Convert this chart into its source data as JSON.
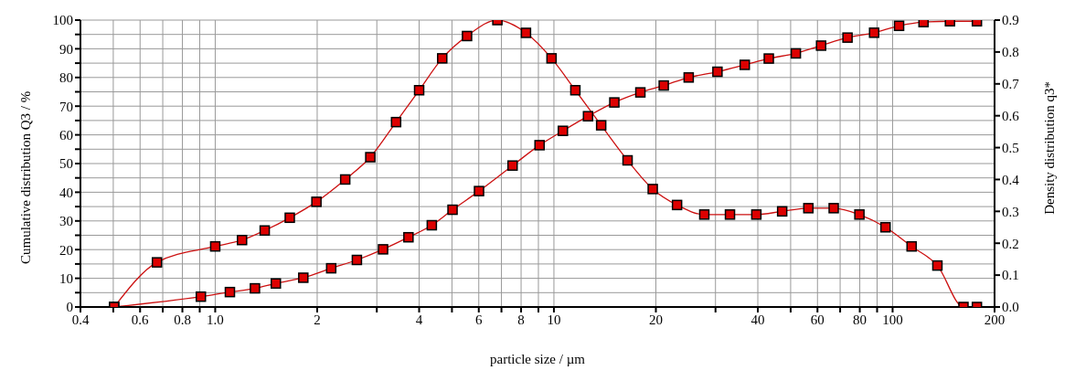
{
  "chart_data": {
    "type": "line",
    "xlabel": "particle size / µm",
    "ylabel": "Cumulative distribution Q3 / %",
    "y2label": "Density distribution q3*",
    "log": "x",
    "grid": true,
    "legend": false,
    "marker": "square",
    "line_style": "solid",
    "xlim": [
      0.4,
      200
    ],
    "xticks": [
      0.4,
      {
        "value": 0.5,
        "label": null
      },
      0.6,
      {
        "value": 0.7,
        "label": null
      },
      0.8,
      {
        "value": 0.9,
        "label": null
      },
      {
        "value": 1,
        "label": "1.0"
      },
      2,
      {
        "value": 3,
        "label": null
      },
      4,
      {
        "value": 5,
        "label": null
      },
      6,
      {
        "value": 7,
        "label": null
      },
      8,
      {
        "value": 9,
        "label": null
      },
      10,
      20,
      {
        "value": 30,
        "label": null
      },
      40,
      {
        "value": 50,
        "label": null
      },
      60,
      {
        "value": 70,
        "label": null
      },
      80,
      {
        "value": 90,
        "label": null
      },
      100,
      200
    ],
    "ylim": [
      0,
      100
    ],
    "yticks": [
      0,
      {
        "value": 5,
        "label": null
      },
      10,
      {
        "value": 15,
        "label": null
      },
      20,
      {
        "value": 25,
        "label": null
      },
      30,
      {
        "value": 35,
        "label": null
      },
      40,
      {
        "value": 45,
        "label": null
      },
      50,
      {
        "value": 55,
        "label": null
      },
      60,
      {
        "value": 65,
        "label": null
      },
      70,
      {
        "value": 75,
        "label": null
      },
      80,
      {
        "value": 85,
        "label": null
      },
      90,
      {
        "value": 95,
        "label": null
      },
      100
    ],
    "y2lim": [
      0,
      0.9
    ],
    "y2ticks": [
      {
        "value": 0,
        "label": "0.0"
      },
      0.1,
      0.2,
      0.3,
      0.4,
      0.5,
      0.6,
      0.7,
      0.8,
      0.9
    ],
    "series": [
      {
        "color": "#cc1111",
        "x": [
          0.503,
          0.907,
          1.105,
          1.31,
          1.51,
          1.82,
          2.2,
          2.62,
          3.13,
          3.72,
          4.36,
          5.02,
          6.01,
          7.55,
          9.07,
          10.63,
          12.61,
          15.08,
          18,
          21.1,
          25,
          30.4,
          36.6,
          43.1,
          51.8,
          61.5,
          73.6,
          88.2,
          104.5,
          123.4,
          147.7,
          177.4
        ],
        "values": [
          0,
          3.6,
          5.2,
          6.5,
          8.2,
          10.2,
          13.5,
          16.4,
          20.1,
          24.3,
          28.5,
          33.9,
          40.4,
          49.3,
          56.4,
          61.4,
          66.5,
          71.3,
          74.8,
          77.2,
          80,
          82,
          84.4,
          86.6,
          88.4,
          91.1,
          93.9,
          95.6,
          98,
          99.3,
          99.6,
          99.6
        ]
      },
      {
        "color": "#cc1111",
        "axis": "y2",
        "x": [
          0.503,
          0.673,
          1,
          1.2,
          1.4,
          1.66,
          1.99,
          2.42,
          2.87,
          3.42,
          4,
          4.68,
          5.54,
          6.81,
          8.27,
          9.84,
          11.57,
          13.79,
          16.5,
          19.58,
          23.1,
          27.8,
          33.1,
          39.6,
          47.2,
          56.4,
          67,
          79.8,
          95.3,
          113.8,
          135.6,
          161.9,
          177.4
        ],
        "values": [
          0,
          0.14,
          0.19,
          0.21,
          0.24,
          0.28,
          0.33,
          0.4,
          0.47,
          0.58,
          0.68,
          0.78,
          0.85,
          0.9,
          0.86,
          0.78,
          0.68,
          0.57,
          0.46,
          0.37,
          0.32,
          0.29,
          0.29,
          0.29,
          0.3,
          0.31,
          0.31,
          0.29,
          0.25,
          0.19,
          0.13,
          0,
          0
        ]
      }
    ]
  }
}
